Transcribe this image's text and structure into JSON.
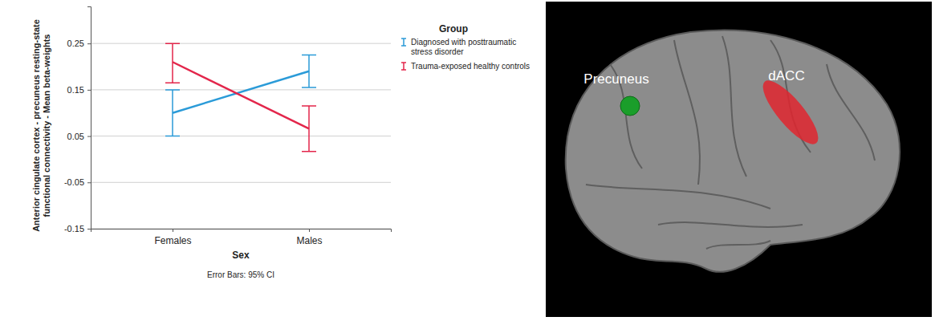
{
  "chart_data": {
    "type": "line",
    "categories": [
      "Females",
      "Males"
    ],
    "x_label": "Sex",
    "y_label": "Anterior cingulate cortex - precuneus resting-state functional connectivity - Mean beta-weights",
    "annotations": [
      "Error Bars: 95% CI"
    ],
    "legend_title": "Group",
    "legend": "right",
    "grid": true,
    "ylim": [
      -0.15,
      0.33
    ],
    "yticks": [
      -0.15,
      -0.05,
      0.05,
      0.15,
      0.25
    ],
    "series": [
      {
        "name": "Diagnosed with posttraumatic stress disorder",
        "color": "#2b9bd8",
        "values": [
          0.1,
          0.19
        ],
        "ci_low": [
          0.05,
          0.155
        ],
        "ci_high": [
          0.15,
          0.225
        ]
      },
      {
        "name": "Trauma-exposed healthy controls",
        "color": "#e3264b",
        "values": [
          0.21,
          0.066
        ],
        "ci_low": [
          0.165,
          0.017
        ],
        "ci_high": [
          0.25,
          0.115
        ]
      }
    ]
  },
  "brain_image": {
    "labels": [
      "Precuneus",
      "dACC"
    ]
  }
}
